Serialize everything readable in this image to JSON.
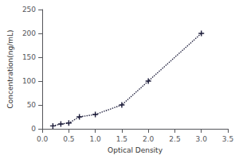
{
  "chart_data": {
    "type": "line",
    "x": [
      0.2,
      0.35,
      0.5,
      0.7,
      1.0,
      1.5,
      2.0,
      3.0
    ],
    "values": [
      6,
      10,
      12,
      25,
      30,
      50,
      100,
      200
    ],
    "color": "#1c1c3a",
    "marker": "plus",
    "line_style": "dotted",
    "xlabel": "Optical Density",
    "ylabel": "Concentration(ng/mL)",
    "xlim": [
      0,
      3.5
    ],
    "ylim": [
      0,
      250
    ],
    "xticks": [
      {
        "value": 0,
        "label": "0.0"
      },
      0.5,
      {
        "value": 1,
        "label": "1.0"
      },
      1.5,
      {
        "value": 2,
        "label": "2.0"
      },
      2.5,
      {
        "value": 3,
        "label": "3.0"
      },
      3.5
    ],
    "yticks": [
      0,
      50,
      100,
      150,
      200,
      250
    ],
    "grid": false
  }
}
